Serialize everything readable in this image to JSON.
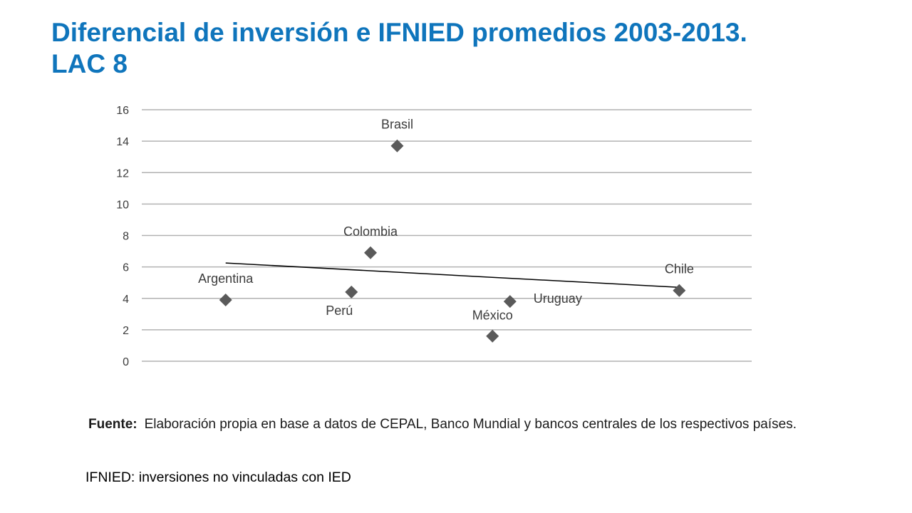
{
  "title": {
    "line1": "Diferencial de inversión e IFNIED promedios 2003-2013.",
    "line2": "LAC 8"
  },
  "chart_data": {
    "type": "scatter",
    "ylim": [
      0,
      16
    ],
    "yticks": [
      "0",
      "2",
      "4",
      "6",
      "8",
      "10",
      "12",
      "14",
      "16"
    ],
    "grid": true,
    "points": [
      {
        "label": "Argentina",
        "x": 1.1,
        "y": 3.9
      },
      {
        "label": "Perú",
        "x": 2.75,
        "y": 4.4
      },
      {
        "label": "Colombia",
        "x": 3.0,
        "y": 6.9
      },
      {
        "label": "Brasil",
        "x": 3.35,
        "y": 13.7
      },
      {
        "label": "México",
        "x": 4.6,
        "y": 1.6
      },
      {
        "label": "Uruguay",
        "x": 4.83,
        "y": 3.8
      },
      {
        "label": "Chile",
        "x": 7.05,
        "y": 4.5
      }
    ],
    "trendline": {
      "x": [
        1.1,
        7.05
      ],
      "y": [
        6.25,
        4.7
      ]
    },
    "colors": {
      "marker": "#5a5a5a",
      "grid": "#b2b2b2",
      "trend": "#000000",
      "text": "#3c3c3c"
    }
  },
  "source": {
    "lead": "Fuente:",
    "text": "Elaboración propia en base a datos de CEPAL, Banco Mundial y bancos centrales de los respectivos países."
  },
  "note": "IFNIED: inversiones no vinculadas con IED"
}
